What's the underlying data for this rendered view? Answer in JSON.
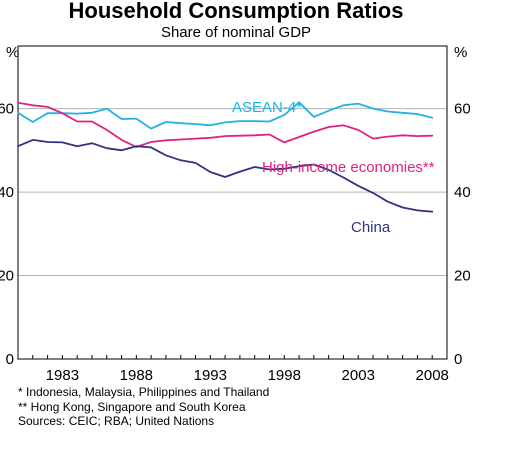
{
  "chart_data": {
    "type": "line",
    "title": "Household Consumption Ratios",
    "subtitle": "Share of nominal GDP",
    "ylabel_left": "%",
    "ylabel_right": "%",
    "ylim": [
      0,
      75
    ],
    "yticks": [
      0,
      20,
      40,
      60
    ],
    "xlim": [
      1980,
      2009
    ],
    "xticks": [
      1983,
      1988,
      1993,
      1998,
      2003,
      2008
    ],
    "grid": "horizontal",
    "x": [
      1980,
      1981,
      1982,
      1983,
      1984,
      1985,
      1986,
      1987,
      1988,
      1989,
      1990,
      1991,
      1992,
      1993,
      1994,
      1995,
      1996,
      1997,
      1998,
      1999,
      2000,
      2001,
      2002,
      2003,
      2004,
      2005,
      2006,
      2007,
      2008
    ],
    "series": [
      {
        "name": "ASEAN-4*",
        "color": "#1fb3e5",
        "values": [
          59.0,
          56.8,
          58.9,
          58.9,
          58.8,
          59.0,
          60.0,
          57.5,
          57.6,
          55.2,
          56.8,
          56.5,
          56.3,
          56.0,
          56.7,
          57.0,
          57.0,
          56.9,
          58.5,
          61.5,
          58.0,
          59.5,
          60.8,
          61.2,
          60.0,
          59.3,
          59.0,
          58.7,
          57.8
        ]
      },
      {
        "name": "High-income economies**",
        "color": "#e0237e",
        "values": [
          61.4,
          60.8,
          60.4,
          58.9,
          56.9,
          56.9,
          54.9,
          52.5,
          50.8,
          52.0,
          52.4,
          52.6,
          52.8,
          53.0,
          53.4,
          53.5,
          53.6,
          53.8,
          51.9,
          53.2,
          54.5,
          55.6,
          56.0,
          54.9,
          52.8,
          53.3,
          53.6,
          53.4,
          53.5
        ]
      },
      {
        "name": "China",
        "color": "#2e3383",
        "values": [
          51.0,
          52.5,
          52.0,
          51.9,
          51.0,
          51.7,
          50.5,
          50.0,
          51.0,
          50.7,
          48.8,
          47.6,
          47.0,
          44.8,
          43.6,
          44.9,
          46.0,
          45.4,
          45.6,
          46.2,
          46.6,
          45.3,
          43.5,
          41.5,
          39.8,
          37.7,
          36.3,
          35.6,
          35.3
        ]
      }
    ],
    "footnotes": [
      "*   Indonesia, Malaysia, Philippines and Thailand",
      "**  Hong Kong, Singapore and South Korea",
      "Sources: CEIC; RBA; United Nations"
    ]
  }
}
